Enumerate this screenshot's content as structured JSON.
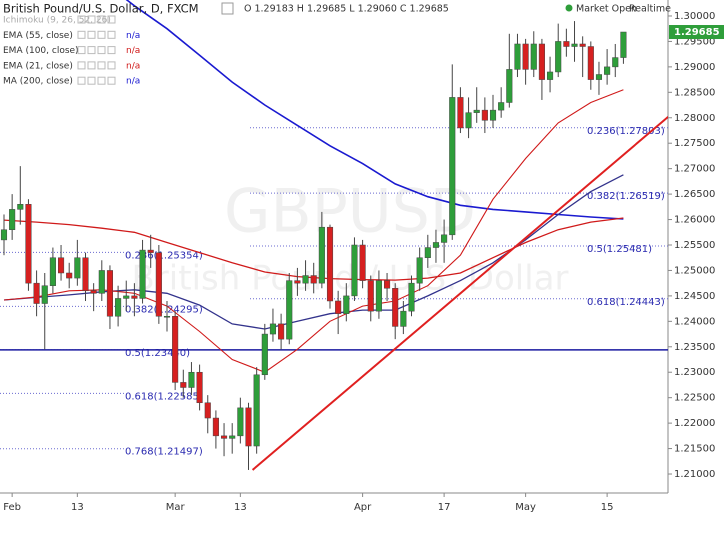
{
  "chart_data": {
    "type": "candlestick",
    "title": "British Pound/U.S. Dollar, D, FXCM",
    "ohlc_text": "O 1.29183 H 1.29685 L 1.29060 C 1.29685",
    "status": "Market Open",
    "feed": "Realtime",
    "watermark": "GBPUSD",
    "watermark_sub": "British Pound / U.S. Dollar",
    "legend": [
      {
        "label": "Ichimoku (9, 26, 52, 26)",
        "color": "#aaaaaa"
      },
      {
        "label": "EMA (55, close)",
        "value_text": "n/a",
        "color": "#1a1ad0"
      },
      {
        "label": "EMA (100, close)",
        "value_text": "n/a",
        "color": "#d01a1a"
      },
      {
        "label": "EMA (21, close)",
        "value_text": "n/a",
        "color": "#d01a1a"
      },
      {
        "label": "MA (200, close)",
        "value_text": "n/a",
        "color": "#1a1ad0"
      }
    ],
    "categories": [
      null,
      "Feb",
      null,
      null,
      null,
      null,
      null,
      null,
      null,
      "13",
      null,
      null,
      null,
      null,
      null,
      null,
      null,
      null,
      null,
      null,
      null,
      "Mar",
      null,
      null,
      null,
      null,
      null,
      null,
      null,
      "13",
      null,
      null,
      null,
      null,
      null,
      null,
      null,
      null,
      null,
      null,
      null,
      null,
      null,
      null,
      "Apr",
      null,
      null,
      null,
      null,
      null,
      null,
      null,
      null,
      null,
      "17",
      null,
      null,
      null,
      null,
      null,
      null,
      null,
      null,
      null,
      "May",
      null,
      null,
      null,
      null,
      null,
      null,
      null,
      null,
      null,
      "15",
      null,
      null
    ],
    "open": [
      1.256,
      1.258,
      1.262,
      1.263,
      1.2475,
      1.2435,
      1.247,
      1.2525,
      1.2495,
      1.2485,
      1.2525,
      1.246,
      1.2455,
      1.25,
      1.241,
      1.2445,
      1.245,
      1.2445,
      1.254,
      1.2535,
      1.241,
      1.241,
      1.228,
      1.227,
      1.23,
      1.224,
      1.221,
      1.2175,
      1.217,
      1.2175,
      1.223,
      1.2155,
      1.2295,
      1.2375,
      1.2395,
      1.2365,
      1.248,
      1.2475,
      1.249,
      1.2475,
      1.2585,
      1.244,
      1.2415,
      1.245,
      1.255,
      1.248,
      1.242,
      1.248,
      1.2465,
      1.239,
      1.242,
      1.2475,
      1.2525,
      1.2545,
      1.2555,
      1.257,
      1.284,
      1.278,
      1.281,
      1.2815,
      1.2795,
      1.2815,
      1.283,
      1.2895,
      1.2945,
      1.2895,
      1.2945,
      1.2875,
      1.289,
      1.295,
      1.294,
      1.2945,
      1.294,
      1.2875,
      1.2885,
      1.29,
      1.29183
    ],
    "high": [
      1.261,
      1.265,
      1.2705,
      1.264,
      1.25,
      1.2495,
      1.2545,
      1.255,
      1.2515,
      1.256,
      1.2535,
      1.2475,
      1.252,
      1.251,
      1.247,
      1.248,
      1.2475,
      1.256,
      1.257,
      1.255,
      1.244,
      1.242,
      1.2305,
      1.232,
      1.2315,
      1.2255,
      1.2225,
      1.22,
      1.22,
      1.225,
      1.224,
      1.231,
      1.2395,
      1.2425,
      1.2415,
      1.2495,
      1.2505,
      1.252,
      1.2515,
      1.2615,
      1.259,
      1.246,
      1.2475,
      1.2565,
      1.256,
      1.249,
      1.25,
      1.2495,
      1.2475,
      1.244,
      1.249,
      1.2545,
      1.257,
      1.258,
      1.26,
      1.2905,
      1.286,
      1.284,
      1.286,
      1.284,
      1.2845,
      1.286,
      1.2965,
      1.2965,
      1.2955,
      1.297,
      1.2955,
      1.292,
      1.2985,
      1.2975,
      1.299,
      1.296,
      1.295,
      1.291,
      1.2935,
      1.2945,
      1.29685
    ],
    "low": [
      1.253,
      1.256,
      1.259,
      1.246,
      1.241,
      1.2345,
      1.2455,
      1.248,
      1.2465,
      1.247,
      1.244,
      1.242,
      1.244,
      1.2385,
      1.239,
      1.242,
      1.241,
      1.2435,
      1.2505,
      1.2395,
      1.238,
      1.2265,
      1.225,
      1.2255,
      1.2225,
      1.218,
      1.215,
      1.2135,
      1.214,
      1.216,
      1.2108,
      1.214,
      1.2285,
      1.236,
      1.2345,
      1.2355,
      1.245,
      1.246,
      1.2455,
      1.2465,
      1.2425,
      1.2375,
      1.24,
      1.244,
      1.2465,
      1.24,
      1.2405,
      1.244,
      1.2365,
      1.2375,
      1.241,
      1.246,
      1.2505,
      1.2515,
      1.2515,
      1.256,
      1.277,
      1.276,
      1.279,
      1.277,
      1.278,
      1.28,
      1.282,
      1.288,
      1.2865,
      1.288,
      1.2835,
      1.285,
      1.288,
      1.292,
      1.291,
      1.288,
      1.2855,
      1.2845,
      1.2865,
      1.288,
      1.2906
    ],
    "close": [
      1.258,
      1.262,
      1.263,
      1.2475,
      1.2435,
      1.247,
      1.2525,
      1.2495,
      1.2485,
      1.2525,
      1.246,
      1.2455,
      1.25,
      1.241,
      1.2445,
      1.245,
      1.2445,
      1.254,
      1.2535,
      1.241,
      1.241,
      1.228,
      1.227,
      1.23,
      1.224,
      1.221,
      1.2175,
      1.217,
      1.2175,
      1.223,
      1.2155,
      1.2295,
      1.2375,
      1.2395,
      1.2365,
      1.248,
      1.2475,
      1.249,
      1.2475,
      1.2585,
      1.244,
      1.2415,
      1.245,
      1.255,
      1.248,
      1.242,
      1.248,
      1.2465,
      1.239,
      1.242,
      1.2475,
      1.2525,
      1.2545,
      1.2555,
      1.257,
      1.284,
      1.278,
      1.281,
      1.2815,
      1.2795,
      1.2815,
      1.283,
      1.2895,
      1.2945,
      1.2895,
      1.2945,
      1.2875,
      1.289,
      1.295,
      1.294,
      1.2945,
      1.294,
      1.2875,
      1.2885,
      1.29,
      1.29183,
      1.29685
    ],
    "up_color": "#2e9e3a",
    "down_color": "#d62020",
    "overlay_x": [
      0,
      4,
      8,
      12,
      16,
      20,
      24,
      28,
      32,
      36,
      40,
      44,
      48,
      52,
      56,
      60,
      64,
      68,
      72,
      76
    ],
    "overlays": [
      {
        "color": "#1a1ad0",
        "width": 1.6,
        "values": [
          1.323,
          1.318,
          1.313,
          1.307,
          1.302,
          1.2975,
          1.2923,
          1.287,
          1.2825,
          1.2785,
          1.2745,
          1.271,
          1.267,
          1.2645,
          1.2628,
          1.262,
          1.2615,
          1.261,
          1.2605,
          1.2601
        ]
      },
      {
        "color": "#d01a1a",
        "width": 1.3,
        "values": [
          1.2599,
          1.2595,
          1.259,
          1.2583,
          1.2575,
          1.2555,
          1.2535,
          1.2515,
          1.2497,
          1.2488,
          1.2484,
          1.2482,
          1.2481,
          1.2485,
          1.2495,
          1.2525,
          1.2555,
          1.258,
          1.2595,
          1.2603
        ]
      },
      {
        "color": "#33338c",
        "width": 1.3,
        "values": [
          1.2442,
          1.2447,
          1.2452,
          1.2458,
          1.2462,
          1.2455,
          1.2432,
          1.2395,
          1.2385,
          1.24,
          1.2415,
          1.2422,
          1.2422,
          1.245,
          1.248,
          1.2515,
          1.256,
          1.261,
          1.2655,
          1.2688
        ]
      },
      {
        "color": "#d01a1a",
        "width": 1.1,
        "values": [
          1.2442,
          1.2448,
          1.246,
          1.2462,
          1.2455,
          1.243,
          1.238,
          1.2325,
          1.23,
          1.2345,
          1.24,
          1.243,
          1.244,
          1.247,
          1.253,
          1.264,
          1.272,
          1.279,
          1.283,
          1.2855
        ]
      }
    ],
    "trendline": {
      "color": "#e02020",
      "x": [
        30.5,
        81.5
      ],
      "values": [
        1.2108,
        1.2802
      ]
    },
    "horizontal_line": {
      "color": "#1a1aa0",
      "value": 1.2344
    },
    "fib_left": [
      {
        "value": 1.25354,
        "label": "0.236(1.25354)"
      },
      {
        "value": 1.24295,
        "label": "0.382(1.24295)"
      },
      {
        "value": 1.2344,
        "label": "0.5(1.23440)"
      },
      {
        "value": 1.22585,
        "label": "0.618(1.22585)"
      },
      {
        "value": 1.21497,
        "label": "0.768(1.21497)"
      }
    ],
    "fib_right": [
      {
        "value": 1.27803,
        "label": "0.236(1.27803)"
      },
      {
        "value": 1.26519,
        "label": "0.382(1.26519)"
      },
      {
        "value": 1.25481,
        "label": "0.5(1.25481)"
      },
      {
        "value": 1.24443,
        "label": "0.618(1.24443)"
      }
    ],
    "last_price": {
      "value": 1.29685,
      "label": "1.29685"
    },
    "xlim": [
      -0.49,
      81.47
    ],
    "ylim": [
      1.20627,
      1.30314
    ],
    "yticks": [
      {
        "value": 1.3,
        "label": "1.30000"
      },
      {
        "value": 1.295,
        "label": "1.29500"
      },
      {
        "value": 1.29,
        "label": "1.29000"
      },
      {
        "value": 1.285,
        "label": "1.28500"
      },
      {
        "value": 1.28,
        "label": "1.28000"
      },
      {
        "value": 1.275,
        "label": "1.27500"
      },
      {
        "value": 1.27,
        "label": "1.27000"
      },
      {
        "value": 1.265,
        "label": "1.26500"
      },
      {
        "value": 1.26,
        "label": "1.26000"
      },
      {
        "value": 1.255,
        "label": "1.25500"
      },
      {
        "value": 1.25,
        "label": "1.25000"
      },
      {
        "value": 1.245,
        "label": "1.24500"
      },
      {
        "value": 1.24,
        "label": "1.24000"
      },
      {
        "value": 1.235,
        "label": "1.23500"
      },
      {
        "value": 1.23,
        "label": "1.23000"
      },
      {
        "value": 1.225,
        "label": "1.22500"
      },
      {
        "value": 1.22,
        "label": "1.22000"
      },
      {
        "value": 1.215,
        "label": "1.21500"
      },
      {
        "value": 1.21,
        "label": "1.21000"
      }
    ]
  }
}
